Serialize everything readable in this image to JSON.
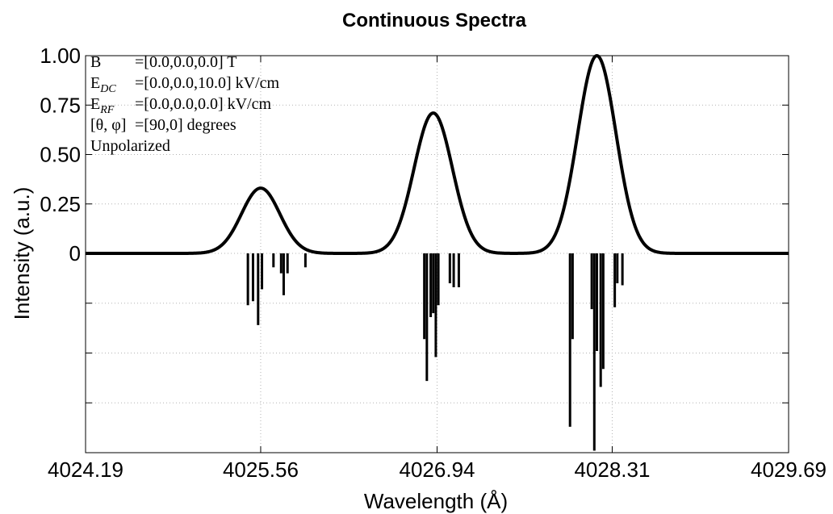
{
  "chart_data": {
    "type": "line",
    "title": "Continuous Spectra",
    "xlabel": "Wavelength (Å)",
    "ylabel": "Intensity (a.u.)",
    "xlim": [
      4024.19,
      4029.69
    ],
    "ylim": [
      -1.0,
      1.0
    ],
    "x_ticks": [
      4024.19,
      4025.56,
      4026.94,
      4028.31,
      4029.69
    ],
    "x_tick_labels": [
      "4024.19",
      "4025.56",
      "4026.94",
      "4028.31",
      "4029.69"
    ],
    "y_ticks": [
      0,
      0.25,
      0.5,
      0.75,
      1.0
    ],
    "y_tick_labels": [
      "0",
      "0.25",
      "0.50",
      "0.75",
      "1.00"
    ],
    "y_grid_ticks": [
      -1.0,
      -0.75,
      -0.5,
      -0.25,
      0,
      0.25,
      0.5,
      0.75,
      1.0
    ],
    "x_grid_ticks": [
      4024.19,
      4025.56,
      4026.94,
      4028.31,
      4029.69
    ],
    "grid": true,
    "annotations": [
      {
        "label": "B",
        "sub": "",
        "value": "=[0.0,0.0,0.0] T"
      },
      {
        "label": "E",
        "sub": "DC",
        "value": "=[0.0,0.0,10.0] kV/cm"
      },
      {
        "label": "E",
        "sub": "RF",
        "value": "=[0.0,0.0,0.0] kV/cm"
      },
      {
        "label": "[θ, φ]",
        "sub": "",
        "value": "=[90,0] degrees"
      },
      {
        "label": "Unpolarized",
        "sub": "",
        "value": ""
      }
    ],
    "series": [
      {
        "kind": "continuous",
        "peaks": [
          {
            "center": 4025.56,
            "amplitude": 0.33,
            "sigma": 0.15
          },
          {
            "center": 4026.91,
            "amplitude": 0.71,
            "sigma": 0.15
          },
          {
            "center": 4028.19,
            "amplitude": 1.0,
            "sigma": 0.15
          }
        ]
      },
      {
        "kind": "stick",
        "lines": [
          {
            "x": 4025.46,
            "y": -0.26
          },
          {
            "x": 4025.5,
            "y": -0.24
          },
          {
            "x": 4025.54,
            "y": -0.36
          },
          {
            "x": 4025.57,
            "y": -0.18
          },
          {
            "x": 4025.66,
            "y": -0.07
          },
          {
            "x": 4025.72,
            "y": -0.1
          },
          {
            "x": 4025.74,
            "y": -0.21
          },
          {
            "x": 4025.77,
            "y": -0.1
          },
          {
            "x": 4025.91,
            "y": -0.07
          },
          {
            "x": 4026.84,
            "y": -0.43
          },
          {
            "x": 4026.86,
            "y": -0.64
          },
          {
            "x": 4026.89,
            "y": -0.32
          },
          {
            "x": 4026.91,
            "y": -0.3
          },
          {
            "x": 4026.93,
            "y": -0.52
          },
          {
            "x": 4026.95,
            "y": -0.26
          },
          {
            "x": 4027.04,
            "y": -0.15
          },
          {
            "x": 4027.07,
            "y": -0.17
          },
          {
            "x": 4027.11,
            "y": -0.17
          },
          {
            "x": 4027.98,
            "y": -0.87
          },
          {
            "x": 4028.0,
            "y": -0.43
          },
          {
            "x": 4028.15,
            "y": -0.28
          },
          {
            "x": 4028.17,
            "y": -0.99
          },
          {
            "x": 4028.19,
            "y": -0.49
          },
          {
            "x": 4028.22,
            "y": -0.67
          },
          {
            "x": 4028.24,
            "y": -0.58
          },
          {
            "x": 4028.33,
            "y": -0.27
          },
          {
            "x": 4028.35,
            "y": -0.15
          },
          {
            "x": 4028.39,
            "y": -0.16
          }
        ]
      }
    ]
  }
}
